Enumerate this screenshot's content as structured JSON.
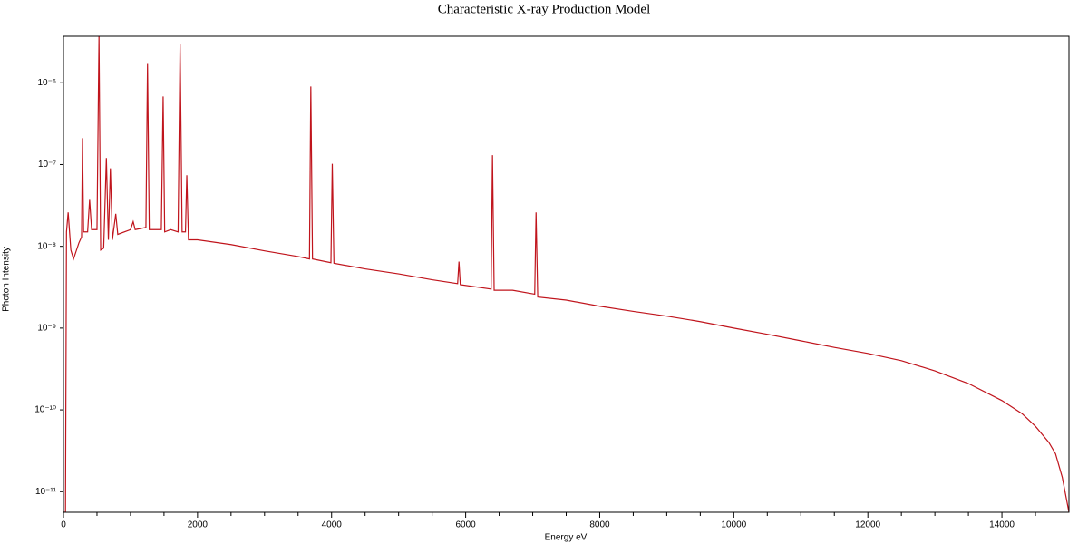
{
  "chart_data": {
    "type": "line",
    "title": "Characteristic X-ray Production Model",
    "x_label": "Energy eV",
    "y_label": "Photon Intensity",
    "color": "#c0141c",
    "log_y": true,
    "xlim": [
      0,
      15000
    ],
    "ylim": [
      5.6e-12,
      3.7e-06
    ],
    "xticks": [
      0,
      2000,
      4000,
      6000,
      8000,
      10000,
      12000,
      14000
    ],
    "xminorticks": [
      500,
      1000,
      1500,
      2500,
      3000,
      3500,
      4500,
      5000,
      5500,
      6500,
      7000,
      7500,
      8500,
      9000,
      9500,
      10500,
      11000,
      11500,
      12500,
      13000,
      13500,
      14500
    ],
    "yticks": [
      {
        "value": 1e-06,
        "label": "10⁻⁶"
      },
      {
        "value": 1e-07,
        "label": "10⁻⁷"
      },
      {
        "value": 1e-08,
        "label": "10⁻⁸"
      },
      {
        "value": 1e-09,
        "label": "10⁻⁹"
      },
      {
        "value": 1e-10,
        "label": "10⁻¹⁰"
      },
      {
        "value": 1e-11,
        "label": "10⁻¹¹"
      }
    ],
    "x": [
      0,
      30,
      45,
      70,
      110,
      150,
      230,
      270,
      284,
      300,
      360,
      390,
      420,
      500,
      530,
      555,
      600,
      640,
      670,
      700,
      730,
      780,
      810,
      1000,
      1040,
      1070,
      1230,
      1254,
      1280,
      1460,
      1487,
      1510,
      1600,
      1710,
      1740,
      1770,
      1820,
      1840,
      1865,
      2000,
      2500,
      3000,
      3500,
      3670,
      3690,
      3715,
      3990,
      4010,
      4035,
      4500,
      5000,
      5500,
      5880,
      5900,
      5920,
      6380,
      6400,
      6425,
      6700,
      7030,
      7050,
      7075,
      7500,
      8000,
      8500,
      9000,
      9500,
      10000,
      10500,
      11000,
      11500,
      12000,
      12500,
      13000,
      13500,
      14000,
      14300,
      14500,
      14700,
      14800,
      14900,
      15000
    ],
    "values": [
      5.6e-12,
      5.6e-12,
      1.5e-08,
      2.6e-08,
      9e-09,
      7e-09,
      1.1e-08,
      1.3e-08,
      2.1e-07,
      1.5e-08,
      1.5e-08,
      3.7e-08,
      1.6e-08,
      1.6e-08,
      3.7e-06,
      9e-09,
      9.5e-09,
      1.2e-07,
      1.2e-08,
      9e-08,
      1.2e-08,
      2.5e-08,
      1.4e-08,
      1.6e-08,
      2e-08,
      1.6e-08,
      1.7e-08,
      1.7e-06,
      1.6e-08,
      1.6e-08,
      6.8e-07,
      1.5e-08,
      1.6e-08,
      1.5e-08,
      3e-06,
      1.5e-08,
      1.5e-08,
      7.4e-08,
      1.2e-08,
      1.2e-08,
      1.05e-08,
      8.8e-09,
      7.5e-09,
      7e-09,
      9e-07,
      7e-09,
      6.3e-09,
      1.02e-07,
      6.2e-09,
      5.3e-09,
      4.6e-09,
      3.9e-09,
      3.5e-09,
      6.5e-09,
      3.4e-09,
      3e-09,
      1.3e-07,
      2.9e-09,
      2.9e-09,
      2.6e-09,
      2.6e-08,
      2.4e-09,
      2.2e-09,
      1.85e-09,
      1.6e-09,
      1.4e-09,
      1.2e-09,
      1e-09,
      8.4e-10,
      7e-10,
      5.8e-10,
      4.9e-10,
      4e-10,
      3e-10,
      2.1e-10,
      1.3e-10,
      9e-11,
      6.3e-11,
      4e-11,
      2.9e-11,
      1.5e-11,
      5.6e-12
    ]
  }
}
